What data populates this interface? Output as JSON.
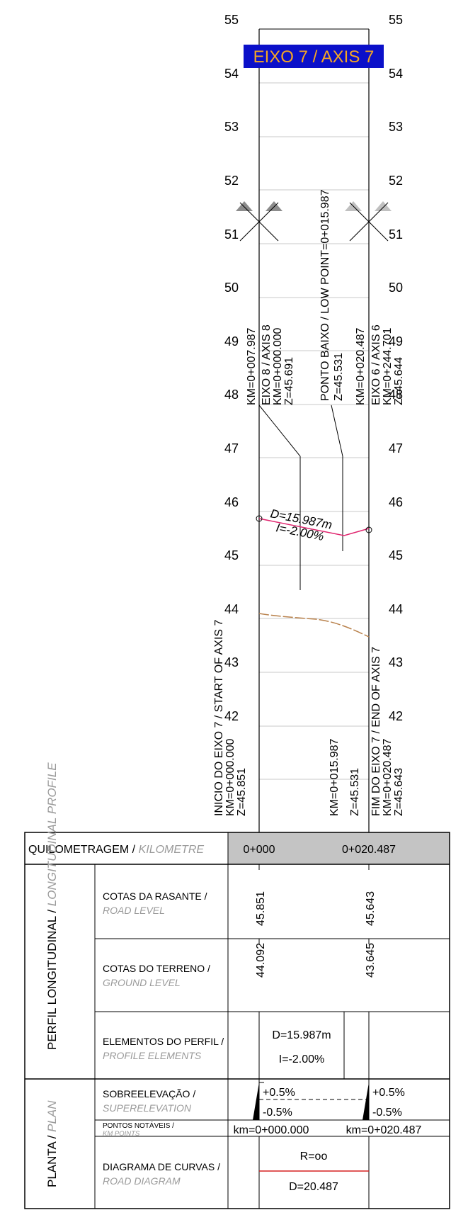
{
  "title": "EIXO 7 / AXIS 7",
  "colors": {
    "title_bg": "#0b10c9",
    "title_text": "#f5a623",
    "grade_line": "#e0266f",
    "ground_line": "#b8804a",
    "header_bg": "#c4c4c4",
    "curve_line": "#d62020",
    "grid": "#c8c8c8"
  },
  "elevations": [
    "55",
    "54",
    "53",
    "52",
    "51",
    "50",
    "49",
    "48",
    "47",
    "46",
    "45",
    "44",
    "43",
    "42"
  ],
  "annotations": {
    "start_km": "KM=0+007.987",
    "axis8": [
      "EIXO 8 / AXIS 8",
      "KM=0+000.000",
      "Z=45.691"
    ],
    "low_point_title": "PONTO BAIXO / LOW POINT=0+015.987",
    "low_point_z": "Z=45.531",
    "end_km": "KM=0+020.487",
    "axis6": [
      "EIXO 6 / AXIS 6",
      "KM=0+244.701",
      "Z=45.644"
    ],
    "grade_distance": "D=15.987m",
    "grade_slope": "I=-2.00%",
    "start_axis": [
      "INICIO DO EIXO 7 / START OF AXIS 7",
      "KM=0+000.000",
      "Z=45.851"
    ],
    "low_point_bottom": [
      "KM=0+015.987",
      "Z=45.531"
    ],
    "end_axis": [
      "FIM DO EIXO 7 / END OF AXIS 7",
      "KM=0+020.487",
      "Z=45.643"
    ]
  },
  "table": {
    "kilometre_label": "QUILOMETRAGEM / ",
    "kilometre_label_en": "KILOMETRE",
    "km_start": "0+000",
    "km_end": "0+020.487",
    "profile_group": "PERFIL LONGITUDINAL / ",
    "profile_group_en": "LONGITUDINAL PROFILE",
    "plan_group": "PLANTA / ",
    "plan_group_en": "PLAN",
    "road_level_label": "COTAS DA RASANTE /",
    "road_level_label_en": "ROAD LEVEL",
    "road_level_start": "45.851",
    "road_level_end": "45.643",
    "ground_level_label": "COTAS DO TERRENO /",
    "ground_level_label_en": "GROUND LEVEL",
    "ground_level_start": "44.092",
    "ground_level_end": "43.645",
    "profile_elements_label": "ELEMENTOS DO PERFIL /",
    "profile_elements_label_en": "PROFILE ELEMENTS",
    "profile_elements_d": "D=15.987m",
    "profile_elements_i": "I=-2.00%",
    "superelevation_label": "SOBREELEVAÇÃO /",
    "superelevation_label_en": "SUPERELEVATION",
    "super_left_top": "+0.5%",
    "super_left_bottom": "-0.5%",
    "super_right_top": "+0.5%",
    "super_right_bottom": "-0.5%",
    "km_points_label": "PONTOS NOTÁVEIS /",
    "km_points_label_en": "KM POINTS",
    "km_point_start": "km=0+000.000",
    "km_point_end": "km=0+020.487",
    "road_diagram_label": "DIAGRAMA DE CURVAS /",
    "road_diagram_label_en": "ROAD DIAGRAM",
    "radius": "R=oo",
    "curve_d": "D=20.487"
  }
}
